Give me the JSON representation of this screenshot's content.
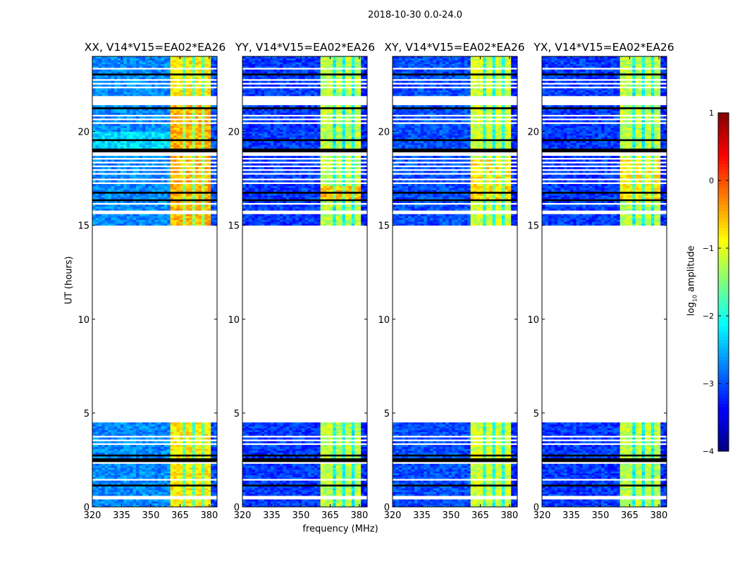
{
  "chart_data": {
    "type": "heatmap",
    "title": "2018-10-30 0.0-24.0",
    "xlabel": "frequency (MHz)",
    "ylabel": "UT (hours)",
    "xlim": [
      320,
      384
    ],
    "ylim": [
      0,
      24
    ],
    "xticks": [
      320,
      335,
      350,
      365,
      380
    ],
    "yticks": [
      0,
      5,
      10,
      15,
      20
    ],
    "colorbar": {
      "label_main": "log",
      "label_sub": "10",
      "label_rest": " amplitude",
      "range": [
        -4,
        1
      ],
      "ticks": [
        1,
        0,
        -1,
        -2,
        -3,
        -4
      ],
      "tick_labels": [
        "1",
        "0",
        "−1",
        "−2",
        "−3",
        "−4"
      ],
      "colormap": "jet"
    },
    "data_time_ranges": [
      [
        0,
        4.5
      ],
      [
        15,
        21.35
      ],
      [
        21.9,
        24
      ]
    ],
    "flagged_hours": [
      0.45,
      1.45,
      2.3,
      3.3,
      3.5,
      3.7,
      15.55,
      15.65,
      16.1,
      17.2,
      17.45,
      17.7,
      17.9,
      18.1,
      18.35,
      18.55,
      18.7,
      18.8,
      20.4,
      20.65,
      20.85,
      22.3,
      22.55,
      22.75,
      23.3
    ],
    "dark_hours": [
      1.1,
      2.4,
      2.55,
      2.7,
      16.3,
      16.7,
      18.9,
      19.0,
      19.5,
      21.2,
      23.0
    ],
    "notch_freqs": [
      366,
      371,
      376
    ],
    "panels": [
      {
        "title": "XX, V14*V15=EA02*EA26",
        "bands": [
          {
            "freq": [
              320,
              360
            ],
            "level": -2.7
          },
          {
            "freq": [
              360,
              380
            ],
            "level": -0.8
          },
          {
            "freq": [
              380,
              384
            ],
            "level": -3.0
          }
        ],
        "high_band": [
          15,
          21.35
        ],
        "high_boost": 0.3
      },
      {
        "title": "YY, V14*V15=EA02*EA26",
        "bands": [
          {
            "freq": [
              320,
              360
            ],
            "level": -3.1
          },
          {
            "freq": [
              360,
              380
            ],
            "level": -1.2
          },
          {
            "freq": [
              380,
              384
            ],
            "level": -3.2
          }
        ],
        "high_band": [
          16.4,
          17.1
        ],
        "high_boost": 0.6
      },
      {
        "title": "XY, V14*V15=EA02*EA26",
        "bands": [
          {
            "freq": [
              320,
              360
            ],
            "level": -3.0
          },
          {
            "freq": [
              360,
              380
            ],
            "level": -1.1
          },
          {
            "freq": [
              380,
              384
            ],
            "level": -3.2
          }
        ],
        "high_band": [
          16.4,
          18.5
        ],
        "high_boost": 0.4
      },
      {
        "title": "YX, V14*V15=EA02*EA26",
        "bands": [
          {
            "freq": [
              320,
              360
            ],
            "level": -3.1
          },
          {
            "freq": [
              360,
              380
            ],
            "level": -1.2
          },
          {
            "freq": [
              380,
              384
            ],
            "level": -3.2
          }
        ],
        "high_band": [
          16.4,
          18.5
        ],
        "high_boost": 0.4
      }
    ]
  }
}
